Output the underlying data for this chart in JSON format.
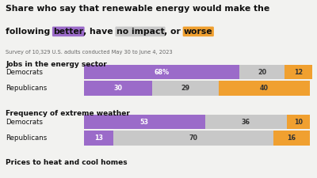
{
  "title_line1": "Share who say that renewable energy would make the",
  "title_line2_parts": [
    {
      "text": "following ",
      "style": "normal"
    },
    {
      "text": "better",
      "style": "highlight_purple"
    },
    {
      "text": ", have ",
      "style": "normal"
    },
    {
      "text": "no impact",
      "style": "highlight_gray"
    },
    {
      "text": ", or ",
      "style": "normal"
    },
    {
      "text": "worse",
      "style": "highlight_orange"
    }
  ],
  "subtitle": "Survey of 10,329 U.S. adults conducted May 30 to June 4, 2023",
  "color_better": "#9b6bc9",
  "color_no_impact": "#c8c8c8",
  "color_worse": "#f0a030",
  "bg_color": "#f2f2f0",
  "text_color": "#111111",
  "subtitle_color": "#666666",
  "bar_text_light": "#ffffff",
  "bar_text_dark": "#333333",
  "sections": [
    {
      "label": "Jobs in the energy sector",
      "rows": [
        {
          "name": "Democrats",
          "better": 68,
          "no_impact": 20,
          "worse": 12,
          "better_label": "68%"
        },
        {
          "name": "Republicans",
          "better": 30,
          "no_impact": 29,
          "worse": 40,
          "better_label": "30"
        }
      ]
    },
    {
      "label": "Frequency of extreme weather",
      "rows": [
        {
          "name": "Democrats",
          "better": 53,
          "no_impact": 36,
          "worse": 10,
          "better_label": "53"
        },
        {
          "name": "Republicans",
          "better": 13,
          "no_impact": 70,
          "worse": 16,
          "better_label": "13"
        }
      ]
    },
    {
      "label": "Prices to heat and cool homes",
      "rows": []
    }
  ],
  "title_fontsize": 7.8,
  "section_fontsize": 6.5,
  "row_label_fontsize": 6.2,
  "bar_fontsize": 5.8,
  "subtitle_fontsize": 4.8
}
